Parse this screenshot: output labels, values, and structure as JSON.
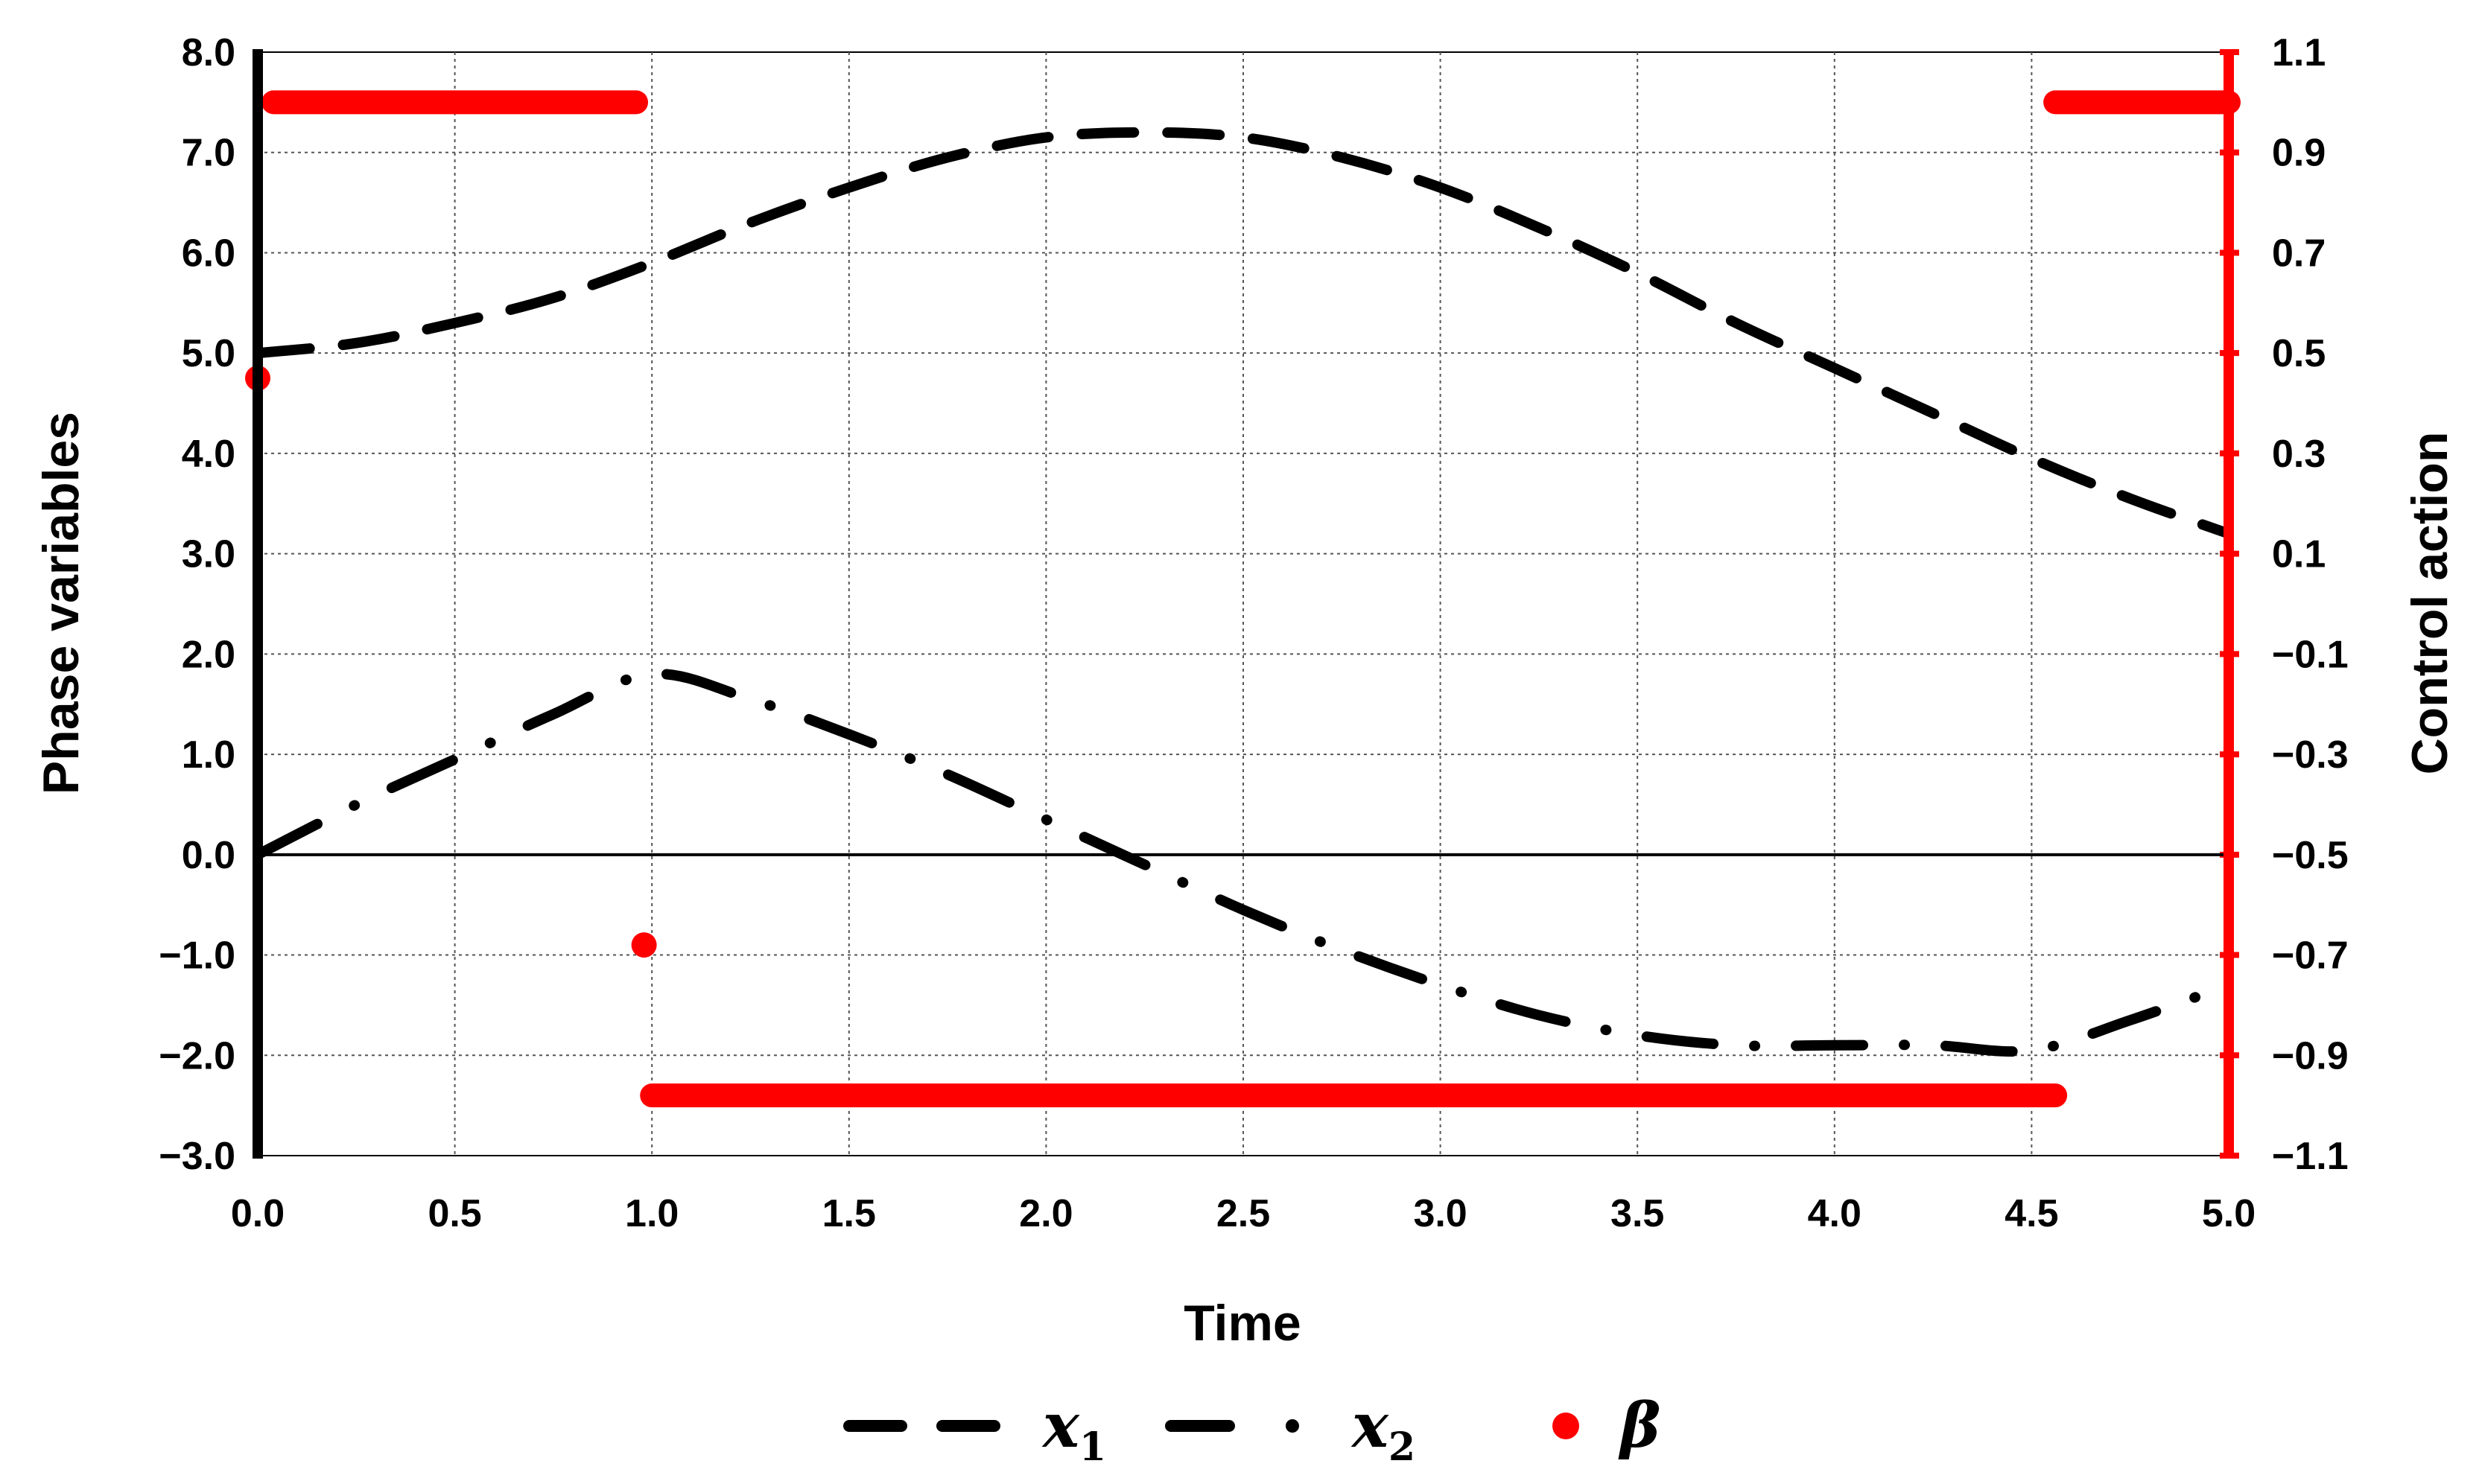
{
  "chart_data": {
    "type": "line",
    "xlabel": "Time",
    "ylabel": "Phase variables",
    "y2label": "Control action",
    "xlim": [
      0,
      5
    ],
    "ylim": [
      -3,
      8
    ],
    "y2lim": [
      -1.1,
      1.1
    ],
    "grid": true,
    "legend_position": "bottom",
    "x_ticks": [
      "0.0",
      "0.5",
      "1.0",
      "1.5",
      "2.0",
      "2.5",
      "3.0",
      "3.5",
      "4.0",
      "4.5",
      "5.0"
    ],
    "y_ticks": [
      "8.0",
      "7.0",
      "6.0",
      "5.0",
      "4.0",
      "3.0",
      "2.0",
      "1.0",
      "0.0",
      "−1.0",
      "−2.0",
      "−3.0"
    ],
    "y2_ticks": [
      "1.1",
      "0.9",
      "0.7",
      "0.5",
      "0.3",
      "0.1",
      "−0.1",
      "−0.3",
      "−0.5",
      "−0.7",
      "−0.9",
      "−1.1"
    ],
    "series": [
      {
        "name": "x1",
        "axis": "left",
        "style": "dash",
        "color": "#000000",
        "x": [
          0.0,
          0.25,
          0.5,
          0.75,
          1.0,
          1.25,
          1.5,
          1.75,
          2.0,
          2.25,
          2.5,
          2.75,
          3.0,
          3.25,
          3.5,
          3.75,
          4.0,
          4.25,
          4.5,
          4.75,
          5.0
        ],
        "y": [
          5.0,
          5.1,
          5.3,
          5.55,
          5.9,
          6.3,
          6.65,
          6.95,
          7.15,
          7.2,
          7.15,
          6.95,
          6.65,
          6.25,
          5.8,
          5.3,
          4.85,
          4.4,
          3.95,
          3.55,
          3.2
        ]
      },
      {
        "name": "x2",
        "axis": "left",
        "style": "dash-dot",
        "color": "#000000",
        "x": [
          0.0,
          0.25,
          0.5,
          0.75,
          1.0,
          1.25,
          1.5,
          1.75,
          2.0,
          2.25,
          2.5,
          2.75,
          3.0,
          3.25,
          3.5,
          3.75,
          4.0,
          4.25,
          4.5,
          4.75,
          5.0
        ],
        "y": [
          0.0,
          0.5,
          0.95,
          1.4,
          1.8,
          1.55,
          1.2,
          0.8,
          0.35,
          -0.1,
          -0.55,
          -0.95,
          -1.3,
          -1.6,
          -1.8,
          -1.9,
          -1.9,
          -1.9,
          -1.95,
          -1.65,
          -1.3
        ]
      },
      {
        "name": "β",
        "axis": "right",
        "style": "points",
        "color": "#ff0000",
        "points": [
          [
            0.0,
            0.45
          ],
          [
            0.98,
            -0.68
          ]
        ],
        "segments": [
          {
            "x0": 0.04,
            "x1": 0.96,
            "y": 1.0
          },
          {
            "x0": 1.0,
            "x1": 4.56,
            "y": -0.98
          },
          {
            "x0": 4.56,
            "x1": 5.0,
            "y": 1.0
          }
        ]
      }
    ],
    "legend": [
      {
        "label": "x",
        "sub": "1",
        "style": "dash"
      },
      {
        "label": "x",
        "sub": "2",
        "style": "dash-dot"
      },
      {
        "label": "β",
        "sub": "",
        "style": "points"
      }
    ]
  }
}
